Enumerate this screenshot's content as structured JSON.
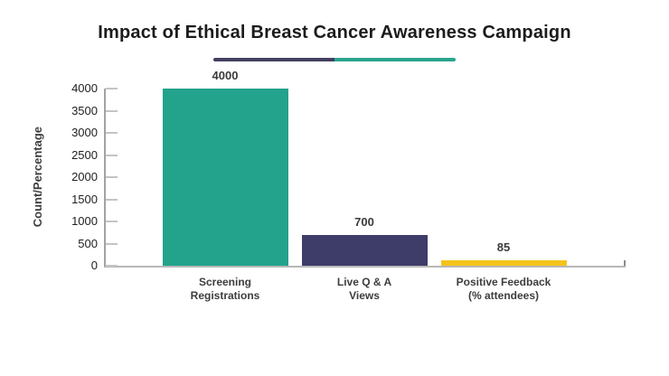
{
  "title": "Impact of Ethical Breast Cancer Awareness Campaign",
  "divider": {
    "left_color": "#434060",
    "right_color": "#2aa48e"
  },
  "chart_data": {
    "type": "bar",
    "title": "Impact of Ethical Breast Cancer Awareness Campaign",
    "categories": [
      "Screening\nRegistrations",
      "Live Q & A\nViews",
      "Positive Feedback\n(% attendees)"
    ],
    "values": [
      4000,
      700,
      85
    ],
    "value_labels": [
      "4000",
      "700",
      "85"
    ],
    "bar_colors": [
      "#23a28c",
      "#3e3c68",
      "#f4c41c"
    ],
    "xlabel": "",
    "ylabel": "Count/Percentage",
    "ylim": [
      0,
      4000
    ],
    "yticks": [
      0,
      500,
      1000,
      1500,
      2000,
      2500,
      3000,
      3500,
      4000
    ],
    "grid": false,
    "legend_position": "none"
  }
}
